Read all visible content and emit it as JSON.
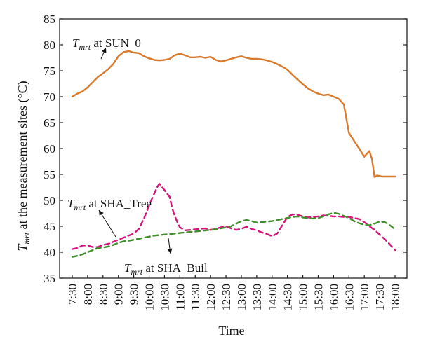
{
  "chart_data": {
    "type": "line",
    "xlabel": "Time",
    "ylabel_main": "T",
    "ylabel_sub": "mrt",
    "ylabel_rest": " at the measurement sites (°C)",
    "ylim": [
      35,
      85
    ],
    "yticks": [
      35,
      40,
      45,
      50,
      55,
      60,
      65,
      70,
      75,
      80,
      85
    ],
    "xticks": [
      "7:30",
      "8:00",
      "8:30",
      "9:00",
      "9:30",
      "10:00",
      "10:30",
      "11:00",
      "11:30",
      "12:00",
      "12:30",
      "13:00",
      "13:30",
      "14:00",
      "14:30",
      "15:00",
      "15:30",
      "16:00",
      "16:30",
      "17:00",
      "17:30",
      "18:00"
    ],
    "xlim_hours": [
      7.5,
      18.0
    ],
    "colors": {
      "sun": "#d97a2c",
      "tree": "#d6157a",
      "buil": "#3f8e2b"
    },
    "series": [
      {
        "name": "SUN_0",
        "x": [
          "7:30",
          "7:40",
          "7:50",
          "8:00",
          "8:10",
          "8:20",
          "8:30",
          "8:40",
          "8:50",
          "9:00",
          "9:10",
          "9:20",
          "9:30",
          "9:40",
          "9:50",
          "10:00",
          "10:10",
          "10:20",
          "10:30",
          "10:40",
          "10:50",
          "11:00",
          "11:10",
          "11:20",
          "11:30",
          "11:40",
          "11:50",
          "12:00",
          "12:10",
          "12:20",
          "12:30",
          "12:40",
          "12:50",
          "13:00",
          "13:10",
          "13:20",
          "13:30",
          "13:40",
          "13:50",
          "14:00",
          "14:10",
          "14:20",
          "14:30",
          "14:40",
          "14:50",
          "15:00",
          "15:10",
          "15:20",
          "15:30",
          "15:40",
          "15:50",
          "16:00",
          "16:10",
          "16:20",
          "16:30",
          "16:40",
          "16:50",
          "17:00",
          "17:05",
          "17:10",
          "17:15",
          "17:20",
          "17:25",
          "17:30",
          "17:35",
          "17:40",
          "17:45",
          "17:50",
          "18:00"
        ],
        "y": [
          70.0,
          70.6,
          71.0,
          71.8,
          72.8,
          73.8,
          74.5,
          75.3,
          76.3,
          77.8,
          78.6,
          78.8,
          78.5,
          78.4,
          77.8,
          77.4,
          77.1,
          77.0,
          77.1,
          77.3,
          78.0,
          78.3,
          78.0,
          77.6,
          77.6,
          77.7,
          77.5,
          77.7,
          77.1,
          76.8,
          77.0,
          77.3,
          77.6,
          77.8,
          77.5,
          77.3,
          77.3,
          77.2,
          77.0,
          76.7,
          76.3,
          75.8,
          75.2,
          74.2,
          73.3,
          72.4,
          71.6,
          71.0,
          70.6,
          70.3,
          70.4,
          70.0,
          69.6,
          68.5,
          63.0,
          61.5,
          60.0,
          58.4,
          59.0,
          59.5,
          58.0,
          54.5,
          54.8,
          54.7,
          54.6,
          54.6,
          54.6,
          54.6,
          54.6
        ],
        "name_label": "SUN_0"
      },
      {
        "name": "SHA_Tree",
        "x": [
          "7:30",
          "7:40",
          "7:50",
          "8:00",
          "8:10",
          "8:20",
          "8:30",
          "8:40",
          "8:50",
          "9:00",
          "9:10",
          "9:20",
          "9:30",
          "9:40",
          "9:50",
          "10:00",
          "10:05",
          "10:10",
          "10:15",
          "10:20",
          "10:25",
          "10:30",
          "10:35",
          "10:40",
          "10:45",
          "10:50",
          "10:55",
          "11:00",
          "11:10",
          "11:20",
          "11:30",
          "11:40",
          "11:50",
          "12:00",
          "12:10",
          "12:20",
          "12:30",
          "12:40",
          "12:50",
          "13:00",
          "13:10",
          "13:20",
          "13:30",
          "13:40",
          "13:50",
          "14:00",
          "14:10",
          "14:20",
          "14:30",
          "14:40",
          "14:50",
          "15:00",
          "15:10",
          "15:20",
          "15:30",
          "15:40",
          "15:50",
          "16:00",
          "16:10",
          "16:20",
          "16:30",
          "16:40",
          "16:50",
          "17:00",
          "17:10",
          "17:20",
          "17:30",
          "17:40",
          "17:50",
          "18:00"
        ],
        "y": [
          40.6,
          40.8,
          41.3,
          41.3,
          41.0,
          41.0,
          41.4,
          41.6,
          42.0,
          42.4,
          42.8,
          43.2,
          43.6,
          44.5,
          46.5,
          49.0,
          50.2,
          51.3,
          52.4,
          53.2,
          52.6,
          52.0,
          51.3,
          50.7,
          48.5,
          47.0,
          45.8,
          44.8,
          44.2,
          44.3,
          44.4,
          44.5,
          44.6,
          44.3,
          44.5,
          44.8,
          45.0,
          44.6,
          44.3,
          44.5,
          44.9,
          44.5,
          44.2,
          43.8,
          43.5,
          43.1,
          43.6,
          45.2,
          46.8,
          47.3,
          47.2,
          46.9,
          46.7,
          46.8,
          46.9,
          47.1,
          47.0,
          46.9,
          46.9,
          46.8,
          46.8,
          46.6,
          46.4,
          45.8,
          45.0,
          44.3,
          43.4,
          42.5,
          41.5,
          40.4
        ],
        "name_label": "SHA_Tree"
      },
      {
        "name": "SHA_Buil",
        "x": [
          "7:30",
          "7:40",
          "7:50",
          "8:00",
          "8:10",
          "8:20",
          "8:30",
          "8:40",
          "8:50",
          "9:00",
          "9:10",
          "9:20",
          "9:30",
          "9:40",
          "9:50",
          "10:00",
          "10:10",
          "10:20",
          "10:30",
          "10:40",
          "10:50",
          "11:00",
          "11:10",
          "11:20",
          "11:30",
          "11:40",
          "11:50",
          "12:00",
          "12:10",
          "12:20",
          "12:30",
          "12:40",
          "12:50",
          "13:00",
          "13:10",
          "13:20",
          "13:30",
          "13:40",
          "13:50",
          "14:00",
          "14:10",
          "14:20",
          "14:30",
          "14:40",
          "14:50",
          "15:00",
          "15:10",
          "15:20",
          "15:30",
          "15:40",
          "15:50",
          "16:00",
          "16:10",
          "16:20",
          "16:30",
          "16:40",
          "16:50",
          "17:00",
          "17:10",
          "17:20",
          "17:30",
          "17:40",
          "17:50",
          "18:00"
        ],
        "y": [
          39.1,
          39.3,
          39.6,
          40.0,
          40.4,
          40.8,
          40.9,
          41.1,
          41.4,
          41.8,
          42.1,
          42.2,
          42.4,
          42.6,
          42.8,
          43.0,
          43.2,
          43.3,
          43.4,
          43.5,
          43.6,
          43.7,
          43.8,
          43.9,
          44.0,
          44.1,
          44.2,
          44.3,
          44.4,
          44.6,
          44.8,
          45.0,
          45.5,
          46.0,
          46.2,
          46.0,
          45.7,
          45.8,
          45.9,
          46.0,
          46.2,
          46.4,
          46.6,
          46.8,
          46.9,
          46.7,
          46.6,
          46.5,
          46.6,
          46.9,
          47.3,
          47.6,
          47.4,
          47.0,
          46.6,
          46.0,
          45.6,
          45.3,
          45.2,
          45.5,
          45.9,
          45.8,
          45.2,
          44.4
        ],
        "name_label": "SHA_Buil"
      }
    ],
    "annotations": [
      {
        "id": "sun",
        "main": "T",
        "sub": "mrt",
        "rest": " at SUN_0"
      },
      {
        "id": "tree",
        "main": "T",
        "sub": "mrt",
        "rest": " at SHA_Tree"
      },
      {
        "id": "buil",
        "main": "T",
        "sub": "mrt",
        "rest": " at SHA_Buil"
      }
    ]
  }
}
